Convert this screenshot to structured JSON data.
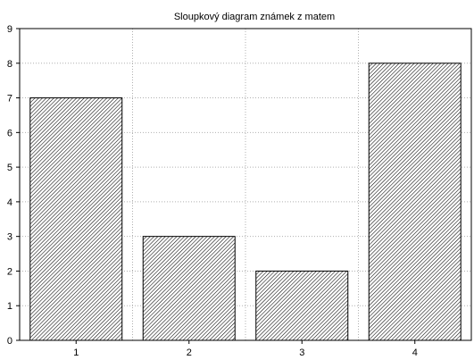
{
  "chart_data": {
    "type": "bar",
    "title": "Sloupkový diagram známek z matem",
    "xlabel": "",
    "ylabel": "",
    "categories": [
      "1",
      "2",
      "3",
      "4"
    ],
    "values": [
      7,
      3,
      2,
      8
    ],
    "ylim": [
      0,
      9
    ],
    "yticks": [
      0,
      1,
      2,
      3,
      4,
      5,
      6,
      7,
      8,
      9
    ],
    "grid": true,
    "bar_fill": "hatched",
    "colors": {
      "bar_line": "#000000",
      "hatch": "#000000",
      "grid": "#b0b0b0",
      "axis": "#000000",
      "background": "#ffffff"
    }
  }
}
